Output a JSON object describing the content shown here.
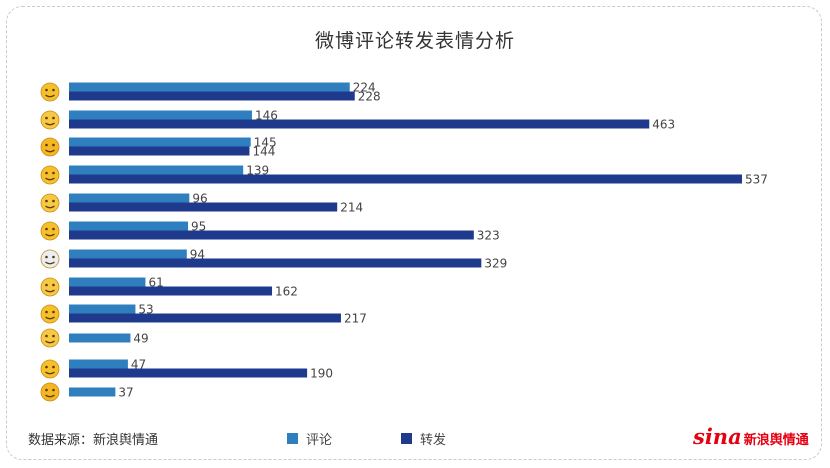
{
  "title": "微博评论转发表情分析",
  "source": "数据来源：新浪舆情通",
  "logo": {
    "sina": "sina",
    "cn": "新浪舆情通"
  },
  "legend": [
    {
      "name": "评论",
      "color": "#2f7fbf"
    },
    {
      "name": "转发",
      "color": "#1f3a8c"
    }
  ],
  "chart_data": {
    "type": "bar",
    "orientation": "horizontal",
    "title": "微博评论转发表情分析",
    "categories": [
      "emoji-1",
      "emoji-2",
      "emoji-3",
      "emoji-4",
      "emoji-5",
      "emoji-6",
      "emoji-7",
      "emoji-8",
      "emoji-9",
      "emoji-10",
      "emoji-11",
      "emoji-12"
    ],
    "series": [
      {
        "name": "评论",
        "color": "#2f7fbf",
        "values": [
          224,
          146,
          145,
          139,
          96,
          95,
          94,
          61,
          53,
          49,
          47,
          37
        ]
      },
      {
        "name": "转发",
        "color": "#1f3a8c",
        "values": [
          228,
          463,
          144,
          537,
          214,
          323,
          329,
          162,
          217,
          null,
          190,
          null
        ]
      }
    ],
    "xlim": [
      0,
      537
    ],
    "grid": false,
    "legend_position": "bottom"
  }
}
